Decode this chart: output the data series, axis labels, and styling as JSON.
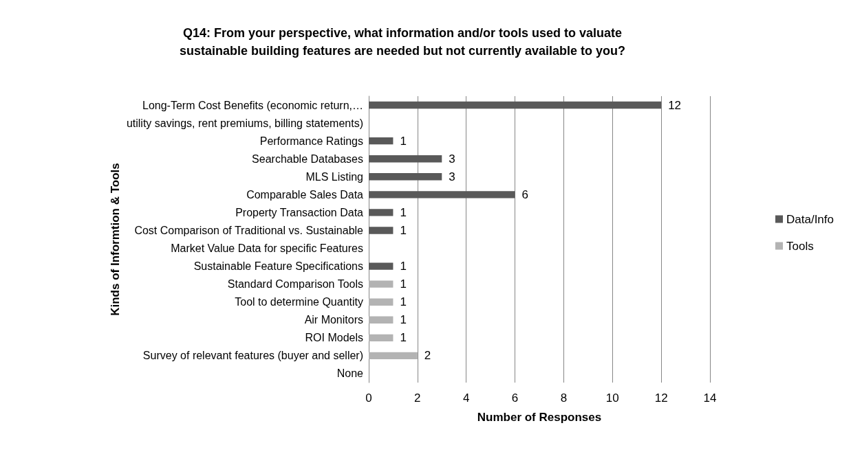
{
  "chart_data": {
    "type": "bar",
    "orientation": "horizontal",
    "title": "Q14: From your perspective, what information and/or tools used to valuate\nsustainable building features are needed but not currently available to you?",
    "xlabel": "Number of Responses",
    "ylabel": "Kinds of Informtion & Tools",
    "categories": [
      "Long-Term Cost Benefits (economic return,…",
      "utility savings, rent premiums, billing statements)",
      "Performance Ratings",
      "Searchable Databases",
      "MLS Listing",
      "Comparable Sales Data",
      "Property Transaction Data",
      "Cost Comparison of Traditional vs. Sustainable",
      "Market Value Data for specific Features",
      "Sustainable Feature Specifications",
      "Standard Comparison Tools",
      "Tool to determine Quantity",
      "Air Monitors",
      "ROI Models",
      "Survey of relevant features (buyer and seller)",
      "None"
    ],
    "series": [
      {
        "name": "Data/Info",
        "color": "#595959",
        "values": [
          12,
          null,
          1,
          3,
          3,
          6,
          1,
          1,
          null,
          1,
          null,
          null,
          null,
          null,
          null,
          null
        ]
      },
      {
        "name": "Tools",
        "color": "#b3b3b3",
        "values": [
          null,
          null,
          null,
          null,
          null,
          null,
          null,
          null,
          null,
          null,
          1,
          1,
          1,
          1,
          2,
          null
        ]
      }
    ],
    "xlim": [
      0,
      14
    ],
    "xticks": [
      0,
      2,
      4,
      6,
      8,
      10,
      12,
      14
    ],
    "grid": "x",
    "legend": "right",
    "data_labels": true
  }
}
